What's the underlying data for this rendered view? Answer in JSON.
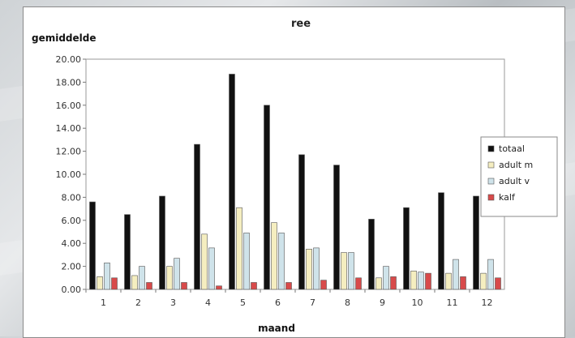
{
  "chart_data": {
    "type": "bar",
    "title": "ree",
    "xlabel": "maand",
    "ylabel": "gemiddelde",
    "categories": [
      "1",
      "2",
      "3",
      "4",
      "5",
      "6",
      "7",
      "8",
      "9",
      "10",
      "11",
      "12"
    ],
    "yticks": [
      "0.00",
      "2.00",
      "4.00",
      "6.00",
      "8.00",
      "10.00",
      "12.00",
      "14.00",
      "16.00",
      "18.00",
      "20.00"
    ],
    "ylim": [
      0,
      20
    ],
    "grid": false,
    "legend_position": "right",
    "series": [
      {
        "name": "totaal",
        "color": "#111111",
        "values": [
          7.6,
          6.5,
          8.1,
          12.6,
          18.7,
          16.0,
          11.7,
          10.8,
          6.1,
          7.1,
          8.4,
          8.1
        ]
      },
      {
        "name": "adult m",
        "color": "#f5eec0",
        "values": [
          1.1,
          1.2,
          2.0,
          4.8,
          7.1,
          5.8,
          3.5,
          3.2,
          1.0,
          1.6,
          1.4,
          1.4
        ]
      },
      {
        "name": "adult v",
        "color": "#cfe3ea",
        "values": [
          2.3,
          2.0,
          2.7,
          3.6,
          4.9,
          4.9,
          3.6,
          3.2,
          2.0,
          1.5,
          2.6,
          2.6
        ]
      },
      {
        "name": "kalf",
        "color": "#d84a4a",
        "values": [
          1.0,
          0.6,
          0.6,
          0.3,
          0.6,
          0.6,
          0.8,
          1.0,
          1.1,
          1.4,
          1.1,
          1.0
        ]
      }
    ]
  }
}
